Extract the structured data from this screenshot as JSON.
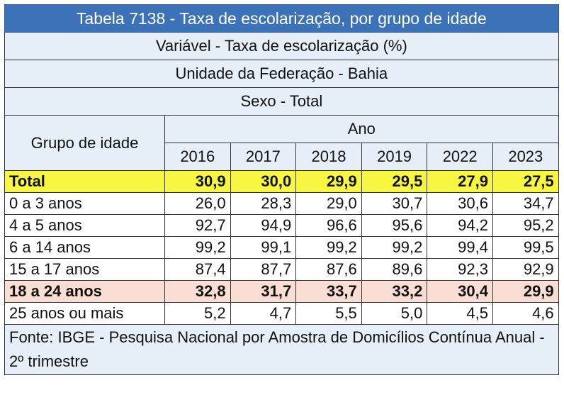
{
  "table": {
    "title": "Tabela 7138 - Taxa de escolarização, por grupo de idade",
    "variable": "Variável - Taxa de escolarização (%)",
    "unit": "Unidade da Federação - Bahia",
    "sex": "Sexo - Total",
    "group_header": "Grupo de idade",
    "year_header": "Ano",
    "years": [
      "2016",
      "2017",
      "2018",
      "2019",
      "2022",
      "2023"
    ],
    "rows": [
      {
        "label": "Total",
        "values": [
          "30,9",
          "30,0",
          "29,9",
          "29,5",
          "27,9",
          "27,5"
        ],
        "highlight": "yellow"
      },
      {
        "label": "0 a 3 anos",
        "values": [
          "26,0",
          "28,3",
          "29,0",
          "30,7",
          "30,6",
          "34,7"
        ],
        "highlight": "none"
      },
      {
        "label": "4 a 5 anos",
        "values": [
          "92,7",
          "94,9",
          "96,6",
          "95,6",
          "94,2",
          "95,2"
        ],
        "highlight": "none"
      },
      {
        "label": "6 a 14 anos",
        "values": [
          "99,2",
          "99,1",
          "99,2",
          "99,2",
          "99,4",
          "99,5"
        ],
        "highlight": "none"
      },
      {
        "label": "15 a 17 anos",
        "values": [
          "87,4",
          "87,7",
          "87,6",
          "89,6",
          "92,3",
          "92,9"
        ],
        "highlight": "none"
      },
      {
        "label": "18 a 24 anos",
        "values": [
          "32,8",
          "31,7",
          "33,7",
          "33,2",
          "30,4",
          "29,9"
        ],
        "highlight": "pink"
      },
      {
        "label": "25 anos ou mais",
        "values": [
          "5,2",
          "4,7",
          "5,5",
          "5,0",
          "4,5",
          "4,6"
        ],
        "highlight": "none"
      }
    ],
    "footer": "Fonte: IBGE - Pesquisa Nacional por Amostra de Domicílios Contínua Anual - 2º trimestre",
    "colors": {
      "title_bg": "#3c72b8",
      "header_bg": "#e6eef8",
      "highlight_yellow": "#f7f742",
      "highlight_pink": "#fbded3"
    }
  }
}
